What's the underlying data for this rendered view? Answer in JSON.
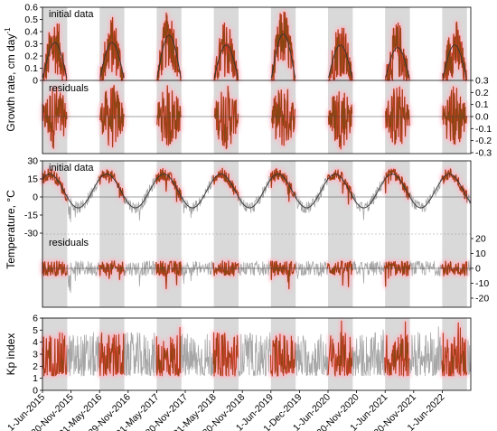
{
  "colors": {
    "season_band": "#d9d9d9",
    "data_line": "#8b4513",
    "highlight": "#ff3b3b",
    "glow": "#ffb3c1",
    "gray_line": "#a6a6a6",
    "fit_line": "#333333"
  },
  "chart_data": [
    {
      "type": "line",
      "panel": "growth",
      "ylabel": "Growth rate, cm day",
      "ylabel_sup": "-1",
      "x": [
        "1-Jun-2015",
        "30-Nov-2015",
        "31-May-2016",
        "29-Nov-2016",
        "31-May-2017",
        "30-Nov-2017",
        "31-May-2018",
        "30-Nov-2018",
        "1-Jun-2019",
        "1-Dec-2019",
        "1-Jun-2020",
        "30-Nov-2020",
        "1-Jun-2021",
        "30-Nov-2021",
        "1-Jun-2022"
      ],
      "seasons": [
        2015,
        2016,
        2017,
        2018,
        2019,
        2020,
        2021,
        2022
      ],
      "subplots": [
        {
          "label": "initial data",
          "ylim": [
            0,
            0.6
          ],
          "yticks": [
            "0",
            "0.1",
            "0.2",
            "0.3",
            "0.4",
            "0.5",
            "0.6"
          ],
          "axis_side": "left",
          "series": [
            {
              "style": "measured"
            },
            {
              "style": "seasonal fit",
              "peak_values": [
                0.29,
                0.29,
                0.35,
                0.27,
                0.36,
                0.27,
                0.25,
                0.27
              ]
            }
          ]
        },
        {
          "label": "residuals",
          "ylim": [
            -0.3,
            0.3
          ],
          "yticks": [
            "-0.3",
            "-0.2",
            "-0.1",
            "0.0",
            "0.1",
            "0.2",
            "0.3"
          ],
          "axis_side": "right"
        }
      ]
    },
    {
      "type": "line",
      "panel": "temperature",
      "ylabel": "Temperature, °C",
      "subplots": [
        {
          "label": "initial data",
          "ylim": [
            -30,
            30
          ],
          "yticks": [
            "-30",
            "-15",
            "0",
            "15",
            "30"
          ],
          "axis_side": "left",
          "series": [
            {
              "style": "measured"
            },
            {
              "style": "annual sinusoid fit",
              "amplitude": 14,
              "mean": 5
            }
          ]
        },
        {
          "label": "residuals",
          "ylim": [
            -25,
            25
          ],
          "yticks": [
            "-20",
            "-10",
            "0",
            "10",
            "20"
          ],
          "axis_side": "right"
        }
      ]
    },
    {
      "type": "line",
      "panel": "kp",
      "ylabel": "Kp index",
      "ylim": [
        0,
        6
      ],
      "yticks": [
        "0",
        "1",
        "2",
        "3",
        "4",
        "5",
        "6"
      ],
      "axis_side": "left"
    }
  ]
}
